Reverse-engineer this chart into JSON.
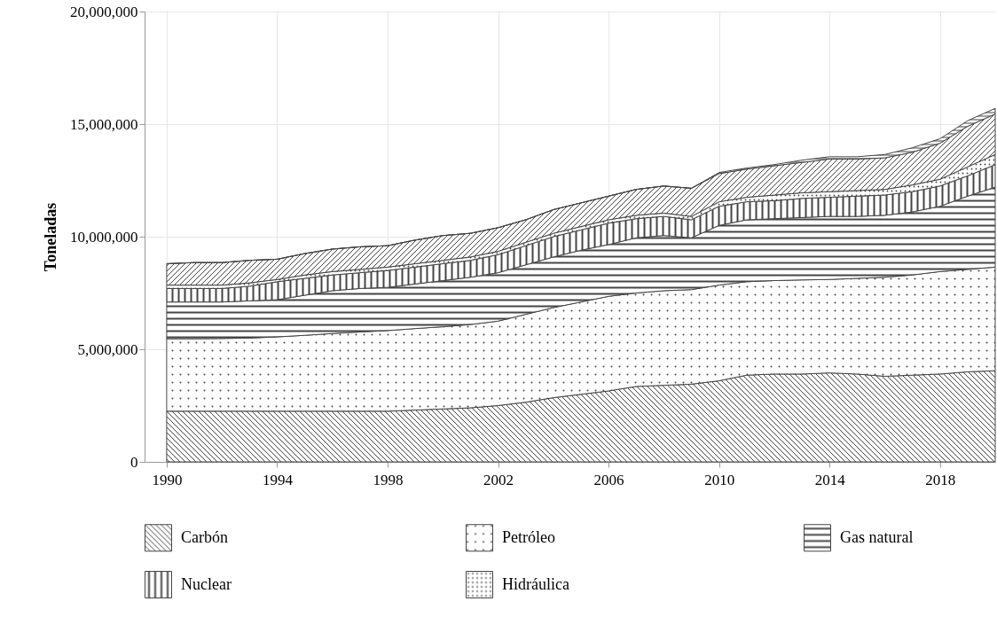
{
  "chart_data": {
    "type": "area",
    "stacked": true,
    "ylabel": "Toneladas",
    "x": [
      1990,
      1991,
      1992,
      1993,
      1994,
      1995,
      1996,
      1997,
      1998,
      1999,
      2000,
      2001,
      2002,
      2003,
      2004,
      2005,
      2006,
      2007,
      2008,
      2009,
      2010,
      2011,
      2012,
      2013,
      2014,
      2015,
      2016,
      2017,
      2018,
      2019,
      2020
    ],
    "xlim": [
      1989.2,
      2020
    ],
    "xticks": [
      1990,
      1994,
      1998,
      2002,
      2006,
      2010,
      2014,
      2018
    ],
    "ylim": [
      0,
      20000000
    ],
    "yticks": [
      {
        "value": 0,
        "label": "0"
      },
      {
        "value": 5000000,
        "label": "5,000,000"
      },
      {
        "value": 10000000,
        "label": "10,000,000"
      },
      {
        "value": 15000000,
        "label": "15,000,000"
      },
      {
        "value": 20000000,
        "label": "20,000,000"
      }
    ],
    "grid": true,
    "legend": "bottom",
    "series": [
      {
        "name": "Carbón",
        "color": "#444444",
        "values": [
          2250000,
          2250000,
          2250000,
          2250000,
          2250000,
          2250000,
          2250000,
          2250000,
          2250000,
          2300000,
          2350000,
          2400000,
          2500000,
          2650000,
          2850000,
          3000000,
          3150000,
          3350000,
          3400000,
          3450000,
          3600000,
          3850000,
          3900000,
          3900000,
          3950000,
          3900000,
          3800000,
          3850000,
          3900000,
          4000000,
          4050000
        ]
      },
      {
        "name": "Petróleo",
        "color": "#444444",
        "values": [
          3220000,
          3220000,
          3230000,
          3250000,
          3300000,
          3370000,
          3450000,
          3520000,
          3580000,
          3620000,
          3650000,
          3700000,
          3750000,
          3900000,
          4000000,
          4100000,
          4200000,
          4150000,
          4200000,
          4200000,
          4250000,
          4150000,
          4150000,
          4180000,
          4150000,
          4250000,
          4400000,
          4450000,
          4550000,
          4550000,
          4600000
        ]
      },
      {
        "name": "Gas natural",
        "color": "#444444",
        "values": [
          1630000,
          1630000,
          1620000,
          1650000,
          1650000,
          1780000,
          1900000,
          1930000,
          1920000,
          1980000,
          2050000,
          2100000,
          2150000,
          2200000,
          2250000,
          2300000,
          2300000,
          2450000,
          2450000,
          2300000,
          2650000,
          2750000,
          2750000,
          2770000,
          2800000,
          2750000,
          2750000,
          2800000,
          2900000,
          3250000,
          3550000
        ]
      },
      {
        "name": "Nuclear",
        "color": "#444444",
        "values": [
          600000,
          600000,
          600000,
          650000,
          800000,
          750000,
          700000,
          700000,
          750000,
          750000,
          750000,
          750000,
          800000,
          850000,
          900000,
          900000,
          950000,
          850000,
          850000,
          800000,
          850000,
          800000,
          800000,
          850000,
          850000,
          900000,
          900000,
          900000,
          900000,
          900000,
          1000000
        ]
      },
      {
        "name": "Hidráulica",
        "color": "#444444",
        "values": [
          150000,
          150000,
          150000,
          150000,
          100000,
          150000,
          150000,
          150000,
          150000,
          150000,
          150000,
          150000,
          150000,
          150000,
          150000,
          150000,
          150000,
          150000,
          150000,
          150000,
          200000,
          200000,
          250000,
          250000,
          250000,
          250000,
          250000,
          300000,
          300000,
          400000,
          450000
        ]
      },
      {
        "color": "#444444",
        "values": [
          950000,
          1000000,
          1000000,
          1000000,
          900000,
          950000,
          1000000,
          1000000,
          950000,
          1050000,
          1100000,
          1050000,
          1050000,
          1000000,
          1050000,
          1050000,
          1050000,
          1150000,
          1200000,
          1250000,
          1250000,
          1250000,
          1300000,
          1350000,
          1450000,
          1400000,
          1400000,
          1450000,
          1600000,
          1800000,
          1800000
        ]
      },
      {
        "color": "#444444",
        "values": [
          0,
          0,
          0,
          0,
          0,
          0,
          0,
          0,
          0,
          0,
          0,
          0,
          0,
          0,
          0,
          0,
          0,
          0,
          0,
          0,
          50000,
          50000,
          50000,
          100000,
          100000,
          100000,
          150000,
          200000,
          200000,
          250000,
          250000
        ]
      }
    ]
  }
}
